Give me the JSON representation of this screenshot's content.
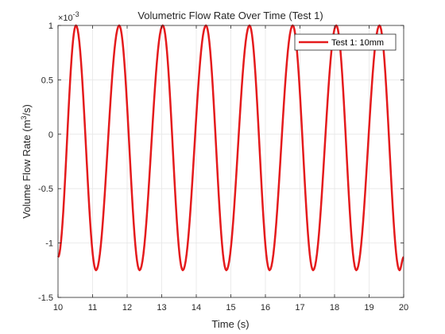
{
  "chart_data": {
    "type": "line",
    "title": "Volumetric Flow Rate Over Time (Test 1)",
    "xlabel": "Time (s)",
    "ylabel_main": "Volume Flow Rate (m",
    "ylabel_sup": "3",
    "ylabel_end": "/s)",
    "exponent_base": "×10",
    "exponent_power": "-3",
    "xlim": [
      10,
      20
    ],
    "ylim": [
      -1.5,
      1
    ],
    "x_ticks": [
      "10",
      "11",
      "12",
      "13",
      "14",
      "15",
      "16",
      "17",
      "18",
      "19",
      "20"
    ],
    "y_ticks": [
      "1",
      "0.5",
      "0",
      "-0.5",
      "-1",
      "-1.5"
    ],
    "y_tick_values": [
      1,
      0.5,
      0,
      -0.5,
      -1,
      -1.5
    ],
    "grid": true,
    "legend_position": "top-right",
    "series": [
      {
        "name": "Test 1: 10mm",
        "color": "#e41a1c",
        "peaks_x": [
          10.52,
          11.77,
          13.03,
          14.28,
          15.54,
          16.79,
          18.05,
          19.3
        ],
        "troughs_x": [
          11.1,
          12.36,
          13.61,
          14.87,
          16.12,
          17.38,
          18.63,
          19.88
        ],
        "peak_y": 1.0,
        "trough_y": -1.25,
        "start": {
          "x": 10,
          "y": -1.13
        },
        "end": {
          "x": 20,
          "y": -1.13
        }
      }
    ]
  }
}
